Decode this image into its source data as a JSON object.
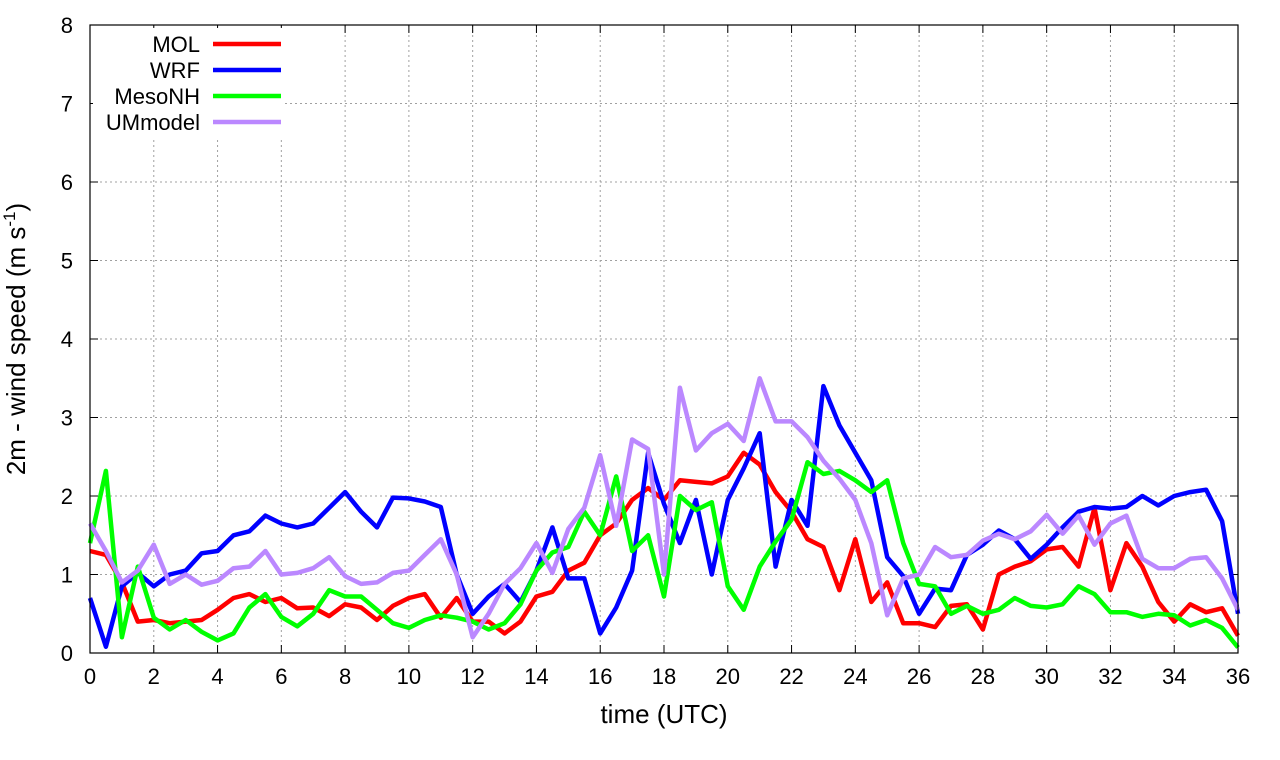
{
  "chart_data": {
    "type": "line",
    "title": "",
    "xlabel": "time (UTC)",
    "ylabel_main": "2m - wind speed  (m s",
    "ylabel_sup": "-1",
    "ylabel_tail": ")",
    "xlim": [
      0,
      36
    ],
    "ylim": [
      0,
      8
    ],
    "xticks": [
      0,
      2,
      4,
      6,
      8,
      10,
      12,
      14,
      16,
      18,
      20,
      22,
      24,
      26,
      28,
      30,
      32,
      34,
      36
    ],
    "yticks": [
      0,
      1,
      2,
      3,
      4,
      5,
      6,
      7,
      8
    ],
    "grid": true,
    "legend_position": "top-left",
    "series": [
      {
        "name": "MOL",
        "color": "#ff0000",
        "x": [
          0,
          0.5,
          1,
          1.5,
          2,
          2.5,
          3,
          3.5,
          4,
          4.5,
          5,
          5.5,
          6,
          6.5,
          7,
          7.5,
          8,
          8.5,
          9,
          9.5,
          10,
          10.5,
          11,
          11.5,
          12,
          12.5,
          13,
          13.5,
          14,
          14.5,
          15,
          15.5,
          16,
          16.5,
          17,
          17.5,
          18,
          18.5,
          19,
          19.5,
          20,
          20.5,
          21,
          21.5,
          22,
          22.5,
          23,
          23.5,
          24,
          24.5,
          25,
          25.5,
          26,
          26.5,
          27,
          27.5,
          28,
          28.5,
          29,
          29.5,
          30,
          30.5,
          31,
          31.5,
          32,
          32.5,
          33,
          33.5,
          34,
          34.5,
          35,
          35.5,
          36
        ],
        "y": [
          1.3,
          1.25,
          0.9,
          0.4,
          0.42,
          0.38,
          0.4,
          0.42,
          0.55,
          0.7,
          0.75,
          0.65,
          0.7,
          0.57,
          0.58,
          0.47,
          0.62,
          0.58,
          0.42,
          0.6,
          0.7,
          0.75,
          0.45,
          0.7,
          0.4,
          0.4,
          0.25,
          0.4,
          0.72,
          0.78,
          1.05,
          1.15,
          1.5,
          1.65,
          1.95,
          2.1,
          1.95,
          2.2,
          2.18,
          2.16,
          2.25,
          2.55,
          2.4,
          2.05,
          1.8,
          1.45,
          1.35,
          0.8,
          1.45,
          0.65,
          0.9,
          0.38,
          0.38,
          0.33,
          0.6,
          0.62,
          0.3,
          1.0,
          1.1,
          1.17,
          1.32,
          1.35,
          1.1,
          1.85,
          0.8,
          1.4,
          1.1,
          0.65,
          0.4,
          0.62,
          0.52,
          0.57,
          0.22
        ]
      },
      {
        "name": "WRF",
        "color": "#0000ff",
        "x": [
          0,
          0.5,
          1,
          1.5,
          2,
          2.5,
          3,
          3.5,
          4,
          4.5,
          5,
          5.5,
          6,
          6.5,
          7,
          7.5,
          8,
          8.5,
          9,
          9.5,
          10,
          10.5,
          11,
          11.5,
          12,
          12.5,
          13,
          13.5,
          14,
          14.5,
          15,
          15.5,
          16,
          16.5,
          17,
          17.5,
          18,
          18.5,
          19,
          19.5,
          20,
          20.5,
          21,
          21.5,
          22,
          22.5,
          23,
          23.5,
          24,
          24.5,
          25,
          25.5,
          26,
          26.5,
          27,
          27.5,
          28,
          28.5,
          29,
          29.5,
          30,
          30.5,
          31,
          31.5,
          32,
          32.5,
          33,
          33.5,
          34,
          34.5,
          35,
          35.5,
          36
        ],
        "y": [
          0.7,
          0.08,
          0.85,
          1.02,
          0.85,
          1.0,
          1.05,
          1.27,
          1.3,
          1.5,
          1.55,
          1.75,
          1.65,
          1.6,
          1.65,
          1.85,
          2.05,
          1.8,
          1.6,
          1.98,
          1.97,
          1.93,
          1.86,
          1.0,
          0.5,
          0.72,
          0.88,
          0.65,
          1.05,
          1.6,
          0.95,
          0.95,
          0.25,
          0.58,
          1.05,
          2.55,
          1.9,
          1.4,
          1.95,
          1.0,
          1.95,
          2.35,
          2.8,
          1.1,
          1.95,
          1.62,
          3.4,
          2.9,
          2.55,
          2.2,
          1.22,
          0.98,
          0.5,
          0.82,
          0.8,
          1.25,
          1.38,
          1.56,
          1.45,
          1.2,
          1.38,
          1.6,
          1.8,
          1.86,
          1.84,
          1.86,
          2.0,
          1.88,
          2.0,
          2.05,
          2.08,
          1.68,
          0.5
        ]
      },
      {
        "name": "MesoNH",
        "color": "#00ff00",
        "x": [
          0,
          0.5,
          1,
          1.5,
          2,
          2.5,
          3,
          3.5,
          4,
          4.5,
          5,
          5.5,
          6,
          6.5,
          7,
          7.5,
          8,
          8.5,
          9,
          9.5,
          10,
          10.5,
          11,
          11.5,
          12,
          12.5,
          13,
          13.5,
          14,
          14.5,
          15,
          15.5,
          16,
          16.5,
          17,
          17.5,
          18,
          18.5,
          19,
          19.5,
          20,
          20.5,
          21,
          21.5,
          22,
          22.5,
          23,
          23.5,
          24,
          24.5,
          25,
          25.5,
          26,
          26.5,
          27,
          27.5,
          28,
          28.5,
          29,
          29.5,
          30,
          30.5,
          31,
          31.5,
          32,
          32.5,
          33,
          33.5,
          34,
          34.5,
          35,
          35.5,
          36
        ],
        "y": [
          1.4,
          2.32,
          0.2,
          1.1,
          0.45,
          0.3,
          0.42,
          0.27,
          0.16,
          0.25,
          0.58,
          0.75,
          0.46,
          0.34,
          0.5,
          0.8,
          0.72,
          0.72,
          0.55,
          0.38,
          0.32,
          0.42,
          0.48,
          0.45,
          0.4,
          0.3,
          0.38,
          0.62,
          1.05,
          1.28,
          1.35,
          1.8,
          1.5,
          2.25,
          1.3,
          1.5,
          0.72,
          2.0,
          1.82,
          1.92,
          0.85,
          0.55,
          1.1,
          1.42,
          1.7,
          2.43,
          2.28,
          2.32,
          2.2,
          2.05,
          2.2,
          1.4,
          0.88,
          0.85,
          0.5,
          0.6,
          0.5,
          0.55,
          0.7,
          0.6,
          0.58,
          0.62,
          0.85,
          0.75,
          0.52,
          0.52,
          0.46,
          0.5,
          0.48,
          0.35,
          0.42,
          0.32,
          0.07
        ]
      },
      {
        "name": "UMmodel",
        "color": "#bb88ff",
        "x": [
          0,
          0.5,
          1,
          1.5,
          2,
          2.5,
          3,
          3.5,
          4,
          4.5,
          5,
          5.5,
          6,
          6.5,
          7,
          7.5,
          8,
          8.5,
          9,
          9.5,
          10,
          10.5,
          11,
          11.5,
          12,
          12.5,
          13,
          13.5,
          14,
          14.5,
          15,
          15.5,
          16,
          16.5,
          17,
          17.5,
          18,
          18.5,
          19,
          19.5,
          20,
          20.5,
          21,
          21.5,
          22,
          22.5,
          23,
          23.5,
          24,
          24.5,
          25,
          25.5,
          26,
          26.5,
          27,
          27.5,
          28,
          28.5,
          29,
          29.5,
          30,
          30.5,
          31,
          31.5,
          32,
          32.5,
          33,
          33.5,
          34,
          34.5,
          35,
          35.5,
          36
        ],
        "y": [
          1.65,
          1.3,
          0.9,
          1.05,
          1.38,
          0.88,
          1.0,
          0.87,
          0.92,
          1.08,
          1.1,
          1.3,
          1.0,
          1.02,
          1.08,
          1.22,
          0.98,
          0.88,
          0.9,
          1.02,
          1.05,
          1.25,
          1.45,
          1.0,
          0.2,
          0.5,
          0.88,
          1.08,
          1.4,
          1.02,
          1.58,
          1.85,
          2.52,
          1.62,
          2.72,
          2.6,
          1.0,
          3.38,
          2.58,
          2.8,
          2.92,
          2.7,
          3.5,
          2.95,
          2.95,
          2.75,
          2.45,
          2.22,
          1.95,
          1.4,
          0.48,
          0.95,
          1.0,
          1.35,
          1.22,
          1.25,
          1.43,
          1.52,
          1.45,
          1.55,
          1.76,
          1.52,
          1.75,
          1.38,
          1.65,
          1.75,
          1.2,
          1.08,
          1.08,
          1.2,
          1.22,
          0.95,
          0.55
        ]
      }
    ]
  }
}
